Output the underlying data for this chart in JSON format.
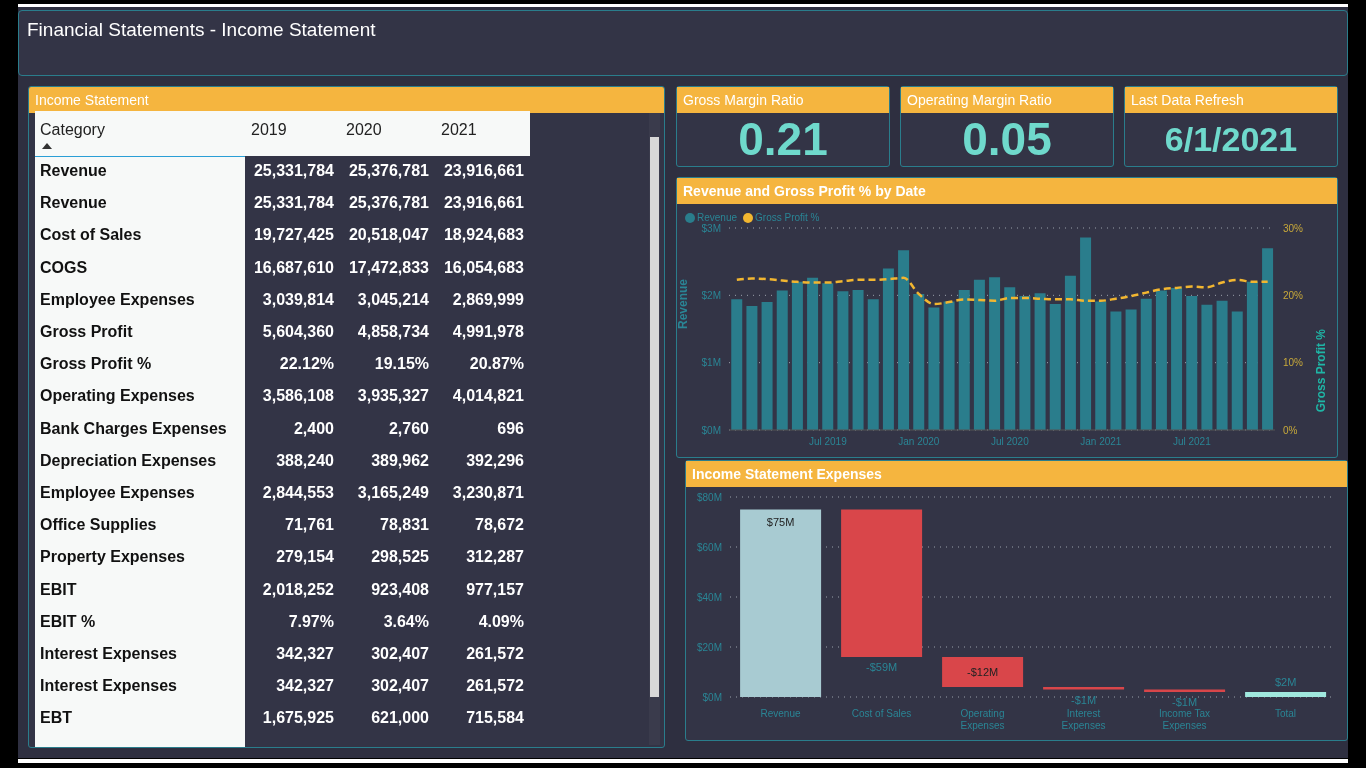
{
  "chart_data": [
    {
      "type": "other",
      "title": "Financial Statements - Income Statement"
    },
    {
      "type": "other",
      "title": "Income Statement",
      "xlabel": "Category",
      "data_labels": true,
      "categories": [
        "Revenue",
        "Revenue",
        "Cost of Sales",
        "COGS",
        "Employee Expenses",
        "Gross Profit",
        "Gross Profit %",
        "Operating Expenses",
        "Bank Charges Expenses",
        "Depreciation Expenses",
        "Employee Expenses",
        "Office Supplies",
        "Property Expenses",
        "EBIT",
        "EBIT %",
        "Interest Expenses",
        "Interest Expenses",
        "EBT"
      ],
      "series": [
        {
          "name": "2019",
          "values": [
            25331784,
            25331784,
            19727425,
            16687610,
            3039814,
            5604360,
            22.12,
            3586108,
            2400,
            388240,
            2844553,
            71761,
            279154,
            2018252,
            7.97,
            342327,
            342327,
            1675925
          ],
          "value_labels": [
            "25,331,784",
            "25,331,784",
            "19,727,425",
            "16,687,610",
            "3,039,814",
            "5,604,360",
            "22.12%",
            "3,586,108",
            "2,400",
            "388,240",
            "2,844,553",
            "71,761",
            "279,154",
            "2,018,252",
            "7.97%",
            "342,327",
            "342,327",
            "1,675,925"
          ]
        },
        {
          "name": "2020",
          "values": [
            25376781,
            25376781,
            20518047,
            17472833,
            3045214,
            4858734,
            19.15,
            3935327,
            2760,
            389962,
            3165249,
            78831,
            298525,
            923408,
            3.64,
            302407,
            302407,
            621000
          ],
          "value_labels": [
            "25,376,781",
            "25,376,781",
            "20,518,047",
            "17,472,833",
            "3,045,214",
            "4,858,734",
            "19.15%",
            "3,935,327",
            "2,760",
            "389,962",
            "3,165,249",
            "78,831",
            "298,525",
            "923,408",
            "3.64%",
            "302,407",
            "302,407",
            "621,000"
          ]
        },
        {
          "name": "2021",
          "values": [
            23916661,
            23916661,
            18924683,
            16054683,
            2869999,
            4991978,
            20.87,
            4014821,
            696,
            392296,
            3230871,
            78672,
            312287,
            977157,
            4.09,
            261572,
            261572,
            715584
          ],
          "value_labels": [
            "23,916,661",
            "23,916,661",
            "18,924,683",
            "16,054,683",
            "2,869,999",
            "4,991,978",
            "20.87%",
            "4,014,821",
            "696",
            "392,296",
            "3,230,871",
            "78,672",
            "312,287",
            "977,157",
            "4.09%",
            "261,572",
            "261,572",
            "715,584"
          ]
        }
      ]
    },
    {
      "type": "other",
      "title": "Gross Margin Ratio",
      "values": [
        0.21
      ],
      "data_labels": true
    },
    {
      "type": "other",
      "title": "Operating Margin Ratio",
      "values": [
        0.05
      ],
      "data_labels": true
    },
    {
      "type": "other",
      "title": "Last Data Refresh",
      "annotations": [
        "6/1/2021"
      ]
    },
    {
      "type": "bar",
      "title": "Revenue and Gross Profit % by Date",
      "ylabel": "Revenue",
      "y2label": "Gross Profit %",
      "legend": "top left",
      "grid": "y",
      "marker": "none",
      "x": [
        "2019-01",
        "2019-02",
        "2019-03",
        "2019-04",
        "2019-05",
        "2019-06",
        "2019-07",
        "2019-08",
        "2019-09",
        "2019-10",
        "2019-11",
        "2019-12",
        "2020-01",
        "2020-02",
        "2020-03",
        "2020-04",
        "2020-05",
        "2020-06",
        "2020-07",
        "2020-08",
        "2020-09",
        "2020-10",
        "2020-11",
        "2020-12",
        "2021-01",
        "2021-02",
        "2021-03",
        "2021-04",
        "2021-05",
        "2021-06",
        "2021-07",
        "2021-08",
        "2021-09",
        "2021-10",
        "2021-11",
        "2021-12"
      ],
      "xlim": [
        "2018-12-16",
        "2021-12-16"
      ],
      "xticks": [
        {
          "value": "2019-07",
          "label": "Jul 2019"
        },
        {
          "value": "2020-01",
          "label": "Jan 2020"
        },
        {
          "value": "2020-07",
          "label": "Jul 2020"
        },
        {
          "value": "2021-01",
          "label": "Jan 2021"
        },
        {
          "value": "2021-07",
          "label": "Jul 2021"
        }
      ],
      "ylim": [
        0,
        3
      ],
      "yticks": [
        {
          "value": 0,
          "label": "$0M"
        },
        {
          "value": 1,
          "label": "$1M"
        },
        {
          "value": 2,
          "label": "$2M"
        },
        {
          "value": 3,
          "label": "$3M"
        }
      ],
      "y2lim": [
        0,
        30
      ],
      "y2ticks": [
        {
          "value": 0,
          "label": "0%"
        },
        {
          "value": 10,
          "label": "10%"
        },
        {
          "value": 20,
          "label": "20%"
        },
        {
          "value": 30,
          "label": "30%"
        }
      ],
      "series": [
        {
          "name": "Revenue",
          "type": "bar",
          "color": "#2a7d8c",
          "values": [
            1.94,
            1.84,
            1.9,
            2.07,
            2.2,
            2.26,
            2.18,
            2.06,
            2.08,
            1.94,
            2.4,
            2.67,
            2.02,
            1.82,
            1.91,
            2.08,
            2.23,
            2.27,
            2.12,
            1.99,
            2.03,
            1.87,
            2.29,
            2.86,
            1.91,
            1.76,
            1.79,
            1.95,
            2.07,
            2.11,
            1.99,
            1.86,
            1.92,
            1.76,
            2.2,
            2.7
          ]
        },
        {
          "name": "Gross Profit %",
          "type": "line",
          "axis": "y2",
          "line_style": "dashed",
          "color": "#f2b630",
          "values": [
            22.3,
            22.5,
            22.4,
            22.2,
            22,
            21.9,
            21.9,
            22.1,
            22.3,
            22.3,
            22.4,
            22.6,
            20.2,
            18.7,
            19,
            19.4,
            19.3,
            19.2,
            19.6,
            19.6,
            19.5,
            19.4,
            19.4,
            19.2,
            19.2,
            19.5,
            19.9,
            20.4,
            20.9,
            21.1,
            21.3,
            21.2,
            21.9,
            22.3,
            22,
            22
          ]
        }
      ]
    },
    {
      "type": "bar",
      "title": "Income Statement Expenses",
      "grid": "y",
      "categories": [
        "Revenue",
        "Cost of Sales",
        "Operating Expenses",
        "Interest Expenses",
        "Income Tax Expenses",
        "Total"
      ],
      "values": [
        75,
        -59,
        -12,
        -1,
        -1,
        2
      ],
      "base": [
        0,
        75,
        16,
        4,
        3,
        0
      ],
      "colors": [
        "#a8cbd2",
        "#d9464a",
        "#d9464a",
        "#d9464a",
        "#d9464a",
        "#a0e8de"
      ],
      "value_labels": [
        "$75M",
        "-$59M",
        "-$12M",
        "-$1M",
        "-$1M",
        "$2M"
      ],
      "ylim": [
        0,
        80
      ],
      "yticks": [
        {
          "value": 0,
          "label": "$0M"
        },
        {
          "value": 20,
          "label": "$20M"
        },
        {
          "value": 40,
          "label": "$40M"
        },
        {
          "value": 60,
          "label": "$60M"
        },
        {
          "value": 80,
          "label": "$80M"
        }
      ]
    }
  ]
}
